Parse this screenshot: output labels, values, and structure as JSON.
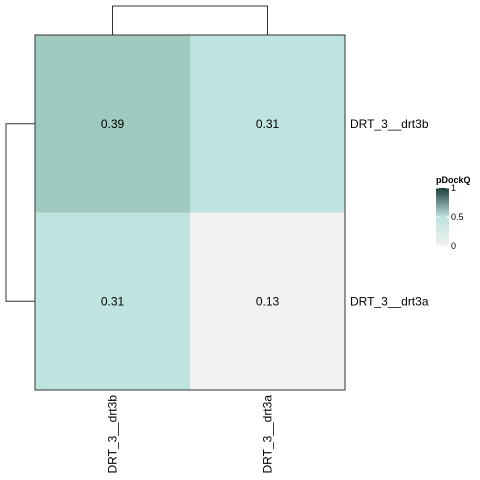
{
  "chart_data": {
    "type": "heatmap",
    "rows": [
      "DRT_3__drt3b",
      "DRT_3__drt3a"
    ],
    "columns": [
      "DRT_3__drt3b",
      "DRT_3__drt3a"
    ],
    "values": [
      [
        0.39,
        0.31
      ],
      [
        0.31,
        0.13
      ]
    ],
    "value_labels": [
      [
        "0.39",
        "0.31"
      ],
      [
        "0.31",
        "0.13"
      ]
    ],
    "color_scale": {
      "min": 0,
      "max": 1,
      "low_color": "#f2f2f2",
      "mid_color": "#bfe3de",
      "high_color": "#1b3e3a"
    },
    "legend": {
      "title": "pDockQ",
      "ticks": [
        "1",
        "0.5",
        "0"
      ],
      "tick_values": [
        1,
        0.5,
        0
      ],
      "placement": "right"
    },
    "row_dendrogram": true,
    "column_dendrogram": true,
    "grid": false
  }
}
